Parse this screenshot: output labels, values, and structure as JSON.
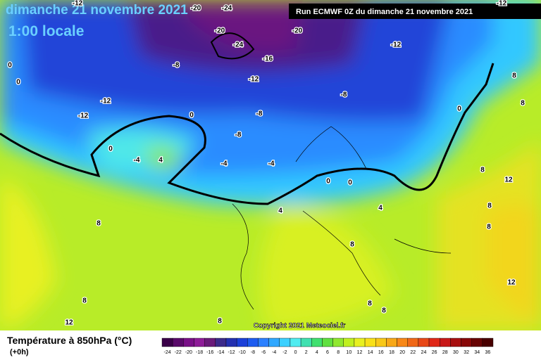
{
  "header": {
    "title": "dimanche 21 novembre 2021",
    "subtitle": "1:00 locale",
    "run": "Run ECMWF 0Z du dimanche 21 novembre 2021"
  },
  "footer": {
    "variable": "Température à 850hPa (°C)",
    "lead": "(+0h)",
    "copyright": "Copyright 2021 Meteociel.fr"
  },
  "map": {
    "contour_labels": [
      -12,
      -24,
      -20,
      -20,
      -24,
      -20,
      -16,
      -12,
      -8,
      -12,
      -8,
      -12,
      -12,
      -8,
      0,
      -8,
      0,
      -4,
      4,
      -4,
      -4,
      0,
      0,
      8,
      8,
      0,
      8,
      12,
      8,
      8,
      4,
      4,
      8,
      8,
      8,
      12,
      8,
      8,
      8,
      12,
      0,
      0,
      -12
    ]
  },
  "scale": {
    "labels": [
      -24,
      -22,
      -20,
      -18,
      -16,
      -14,
      -12,
      -10,
      -8,
      -6,
      -4,
      -2,
      0,
      2,
      4,
      6,
      8,
      10,
      12,
      14,
      16,
      18,
      20,
      22,
      24,
      26,
      28,
      30,
      32,
      34,
      36
    ],
    "colors": [
      "#3a0048",
      "#5a0a6a",
      "#7a1088",
      "#8e1c98",
      "#6a1a7a",
      "#3c2a8a",
      "#2430b0",
      "#1c40d8",
      "#1e5cf0",
      "#2c80ff",
      "#30a8ff",
      "#3cd0ff",
      "#50ecf0",
      "#40e0b0",
      "#40e070",
      "#60e040",
      "#90e830",
      "#c0f020",
      "#e8f020",
      "#f8e018",
      "#f8c818",
      "#f8a818",
      "#f88818",
      "#f06818",
      "#e84818",
      "#e02818",
      "#c81818",
      "#a81010",
      "#880808",
      "#680404",
      "#480000"
    ]
  }
}
